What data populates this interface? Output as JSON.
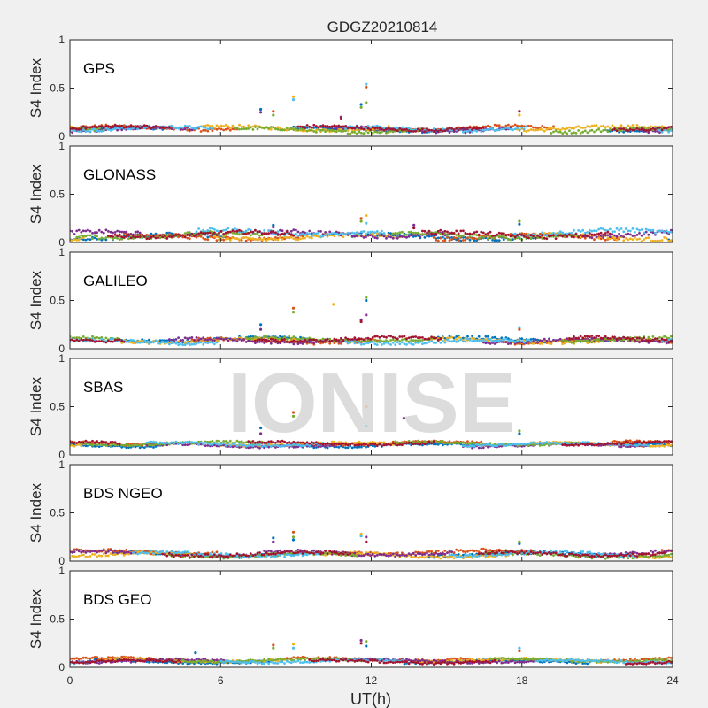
{
  "chart_data": {
    "type": "scatter",
    "title": "GDGZ20210814",
    "xlabel": "UT(h)",
    "ylabel": "S4 Index",
    "xlim": [
      0,
      24
    ],
    "ylim": [
      0,
      1
    ],
    "xticks": [
      0,
      6,
      12,
      18,
      24
    ],
    "yticks": [
      0,
      0.5,
      1
    ],
    "xtick_labels": [
      "0",
      "6",
      "12",
      "18",
      "24"
    ],
    "ytick_labels": [
      "0",
      "0.5",
      "1"
    ],
    "watermark": "IONISE",
    "series_colors": [
      "#0072bd",
      "#d95319",
      "#edb120",
      "#7e2f8e",
      "#77ac30",
      "#4dbeee",
      "#a2142f"
    ],
    "grid": false,
    "legend": "none",
    "panels": [
      {
        "label": "GPS",
        "baseline": 0.08,
        "spread": 0.04,
        "spikes": [
          {
            "x": 7.6,
            "y": [
              0.28,
              0.25
            ]
          },
          {
            "x": 8.1,
            "y": [
              0.26,
              0.22
            ]
          },
          {
            "x": 8.9,
            "y": [
              0.41,
              0.38
            ]
          },
          {
            "x": 10.8,
            "y": [
              0.2,
              0.18
            ]
          },
          {
            "x": 11.6,
            "y": [
              0.3,
              0.33
            ]
          },
          {
            "x": 11.8,
            "y": [
              0.54,
              0.51,
              0.35
            ]
          },
          {
            "x": 17.9,
            "y": [
              0.26,
              0.22
            ]
          }
        ]
      },
      {
        "label": "GLONASS",
        "baseline": 0.08,
        "spread": 0.05,
        "spikes": [
          {
            "x": 8.1,
            "y": [
              0.18,
              0.16
            ]
          },
          {
            "x": 11.6,
            "y": [
              0.25,
              0.22
            ]
          },
          {
            "x": 11.8,
            "y": [
              0.28,
              0.2
            ]
          },
          {
            "x": 13.7,
            "y": [
              0.18,
              0.15
            ]
          },
          {
            "x": 17.9,
            "y": [
              0.22,
              0.19
            ]
          }
        ]
      },
      {
        "label": "GALILEO",
        "baseline": 0.08,
        "spread": 0.04,
        "spikes": [
          {
            "x": 7.6,
            "y": [
              0.25,
              0.2
            ]
          },
          {
            "x": 8.9,
            "y": [
              0.42,
              0.38
            ]
          },
          {
            "x": 10.5,
            "y": [
              0.46
            ]
          },
          {
            "x": 11.6,
            "y": [
              0.3,
              0.28
            ]
          },
          {
            "x": 11.8,
            "y": [
              0.53,
              0.5,
              0.35
            ]
          },
          {
            "x": 17.9,
            "y": [
              0.22,
              0.2
            ]
          }
        ]
      },
      {
        "label": "SBAS",
        "baseline": 0.11,
        "spread": 0.03,
        "spikes": [
          {
            "x": 7.6,
            "y": [
              0.28,
              0.22
            ]
          },
          {
            "x": 8.9,
            "y": [
              0.44,
              0.4
            ]
          },
          {
            "x": 11.8,
            "y": [
              0.5,
              0.3
            ]
          },
          {
            "x": 13.3,
            "y": [
              0.38
            ]
          },
          {
            "x": 17.9,
            "y": [
              0.25,
              0.22
            ]
          }
        ]
      },
      {
        "label": "BDS NGEO",
        "baseline": 0.08,
        "spread": 0.04,
        "spikes": [
          {
            "x": 8.1,
            "y": [
              0.24,
              0.2
            ]
          },
          {
            "x": 8.9,
            "y": [
              0.3,
              0.25,
              0.22
            ]
          },
          {
            "x": 11.6,
            "y": [
              0.28,
              0.26
            ]
          },
          {
            "x": 11.8,
            "y": [
              0.25,
              0.2
            ]
          },
          {
            "x": 17.9,
            "y": [
              0.2,
              0.18
            ]
          }
        ]
      },
      {
        "label": "BDS GEO",
        "baseline": 0.07,
        "spread": 0.03,
        "spikes": [
          {
            "x": 5.0,
            "y": [
              0.15
            ]
          },
          {
            "x": 8.1,
            "y": [
              0.23,
              0.2
            ]
          },
          {
            "x": 8.9,
            "y": [
              0.24,
              0.2
            ]
          },
          {
            "x": 11.6,
            "y": [
              0.28,
              0.25
            ]
          },
          {
            "x": 11.8,
            "y": [
              0.27,
              0.22
            ]
          },
          {
            "x": 17.9,
            "y": [
              0.2,
              0.17
            ]
          }
        ]
      }
    ]
  }
}
